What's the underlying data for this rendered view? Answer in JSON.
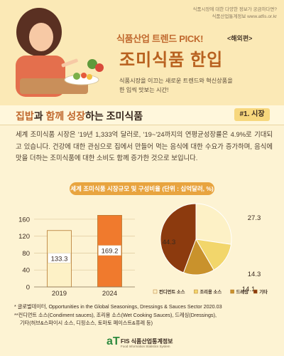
{
  "header": {
    "notes": [
      "식품시장에 대한 다양한 정보가 궁금하다면?",
      "식품산업통계정보 www.atfis.or.kr"
    ],
    "kicker": "식품산업 트렌드 PICK!",
    "kicker_sub": "<해외편>",
    "headline": "조미식품 한입",
    "subcopy": [
      "식품시장을 이끄는 새로운 트렌드와 혁신상품을",
      "한 입씩 맛보는 시간!"
    ]
  },
  "section": {
    "title_parts": [
      "집밥",
      "과 ",
      "함께",
      " ",
      "성장",
      "하는 ",
      "조미식품"
    ],
    "tag": "#1. 시장",
    "body": "세계 조미식품 시장은 '19년 1,333억 달러로, '19~'24까지의 연평균성장률은 4.9%로 기대되고 있습니다. 건강에 대한 관심으로 집에서 만들어 먹는 음식에 대한 수요가 증가하며, 음식에 맛을 더하는 조미식품에 대한 소비도 함께 증가한 것으로 보입니다."
  },
  "chart_data": [
    {
      "type": "bar",
      "title": "세계 조미식품 시장규모 및 구성비율 (단위 : 십억달러, %)",
      "categories": [
        "2019",
        "2024"
      ],
      "values": [
        133.3,
        169.2
      ],
      "value_labels": [
        "133.3",
        "169.2"
      ],
      "ylim": [
        0,
        180
      ],
      "yticks": [
        0,
        40,
        80,
        120,
        160
      ],
      "bar_colors": [
        "#fdf1c6",
        "#f07a2d"
      ],
      "grid": true
    },
    {
      "type": "pie",
      "slices": [
        {
          "name": "컨디먼트 소스",
          "value": 27.3,
          "color": "#fdf1c6"
        },
        {
          "name": "조리용 소스",
          "value": 14.3,
          "color": "#f2d66b"
        },
        {
          "name": "드레싱",
          "value": 14.1,
          "color": "#c9922c"
        },
        {
          "name": "기타",
          "value": 44.3,
          "color": "#8c3a0e"
        }
      ],
      "legend_position": "bottom"
    }
  ],
  "footnotes": [
    "* 글로벌데이터, Opportunities in the Global Seasonings, Dressings & Sauces Sector 2020.03",
    "**컨디먼트 소스(Condiment sauces), 조리용 소스(Wet Cooking Sauces), 드레싱(Dressings),",
    "기타(허브&스파이시 소스, 디핑소스, 토마토 페이스트&퓨레 등)"
  ],
  "footer": {
    "logo_mark": "aT",
    "logo_name": "FIS 식품산업통계정보",
    "logo_en": "Food Information Statistics System"
  }
}
